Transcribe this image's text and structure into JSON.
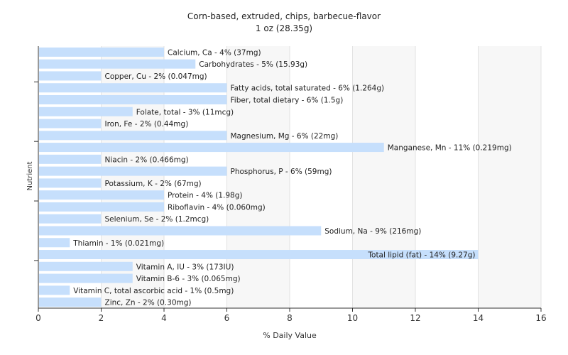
{
  "chart_data": {
    "type": "bar",
    "orientation": "horizontal",
    "title": "Corn-based, extruded, chips, barbecue-flavor",
    "subtitle": "1 oz (28.35g)",
    "xlabel": "% Daily Value",
    "ylabel": "Nutrient",
    "xlim": [
      0,
      16
    ],
    "xticks": [
      0,
      2,
      4,
      6,
      8,
      10,
      12,
      14,
      16
    ],
    "grid": true,
    "bar_color": "#c6dffc",
    "categories": [
      "Calcium, Ca",
      "Carbohydrates",
      "Copper, Cu",
      "Fatty acids, total saturated",
      "Fiber, total dietary",
      "Folate, total",
      "Iron, Fe",
      "Magnesium, Mg",
      "Manganese, Mn",
      "Niacin",
      "Phosphorus, P",
      "Potassium, K",
      "Protein",
      "Riboflavin",
      "Selenium, Se",
      "Sodium, Na",
      "Thiamin",
      "Total lipid (fat)",
      "Vitamin A, IU",
      "Vitamin B-6",
      "Vitamin C, total ascorbic acid",
      "Zinc, Zn"
    ],
    "values": [
      4,
      5,
      2,
      6,
      6,
      3,
      2,
      6,
      11,
      2,
      6,
      2,
      4,
      4,
      2,
      9,
      1,
      14,
      3,
      3,
      1,
      2
    ],
    "labels": [
      "Calcium, Ca - 4% (37mg)",
      "Carbohydrates - 5% (15.93g)",
      "Copper, Cu - 2% (0.047mg)",
      "Fatty acids, total saturated - 6% (1.264g)",
      "Fiber, total dietary - 6% (1.5g)",
      "Folate, total - 3% (11mcg)",
      "Iron, Fe - 2% (0.44mg)",
      "Magnesium, Mg - 6% (22mg)",
      "Manganese, Mn - 11% (0.219mg)",
      "Niacin - 2% (0.466mg)",
      "Phosphorus, P - 6% (59mg)",
      "Potassium, K - 2% (67mg)",
      "Protein - 4% (1.98g)",
      "Riboflavin - 4% (0.060mg)",
      "Selenium, Se - 2% (1.2mcg)",
      "Sodium, Na - 9% (216mg)",
      "Thiamin - 1% (0.021mg)",
      "Total lipid (fat) - 14% (9.27g)",
      "Vitamin A, IU - 3% (173IU)",
      "Vitamin B-6 - 3% (0.065mg)",
      "Vitamin C, total ascorbic acid - 1% (0.5mg)",
      "Zinc, Zn - 2% (0.30mg)"
    ]
  }
}
